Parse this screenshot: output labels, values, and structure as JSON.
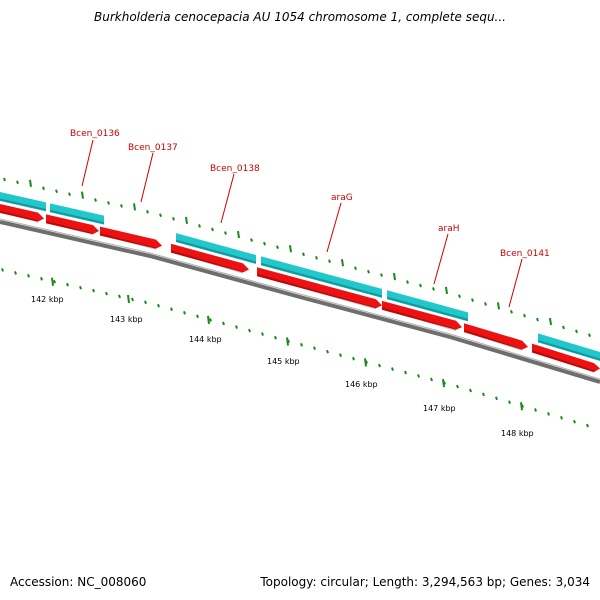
{
  "title": "Burkholderia cenocepacia AU 1054 chromosome 1, complete sequ...",
  "footer": {
    "accession": "Accession: NC_008060",
    "stats": "Topology: circular; Length: 3,294,563 bp; Genes: 3,034"
  },
  "colors": {
    "forward_gene": "#20c8cc",
    "reverse_gene": "#ee1111",
    "gene_label": "#cc0000",
    "tick": "#1a8a1a",
    "backbone": "#777777"
  },
  "kbp_labels": [
    "142 kbp",
    "143 kbp",
    "144 kbp",
    "145 kbp",
    "146 kbp",
    "147 kbp",
    "148 kbp"
  ],
  "gene_labels": [
    "Bcen_0136",
    "Bcen_0137",
    "Bcen_0138",
    "araG",
    "araH",
    "Bcen_0141"
  ]
}
